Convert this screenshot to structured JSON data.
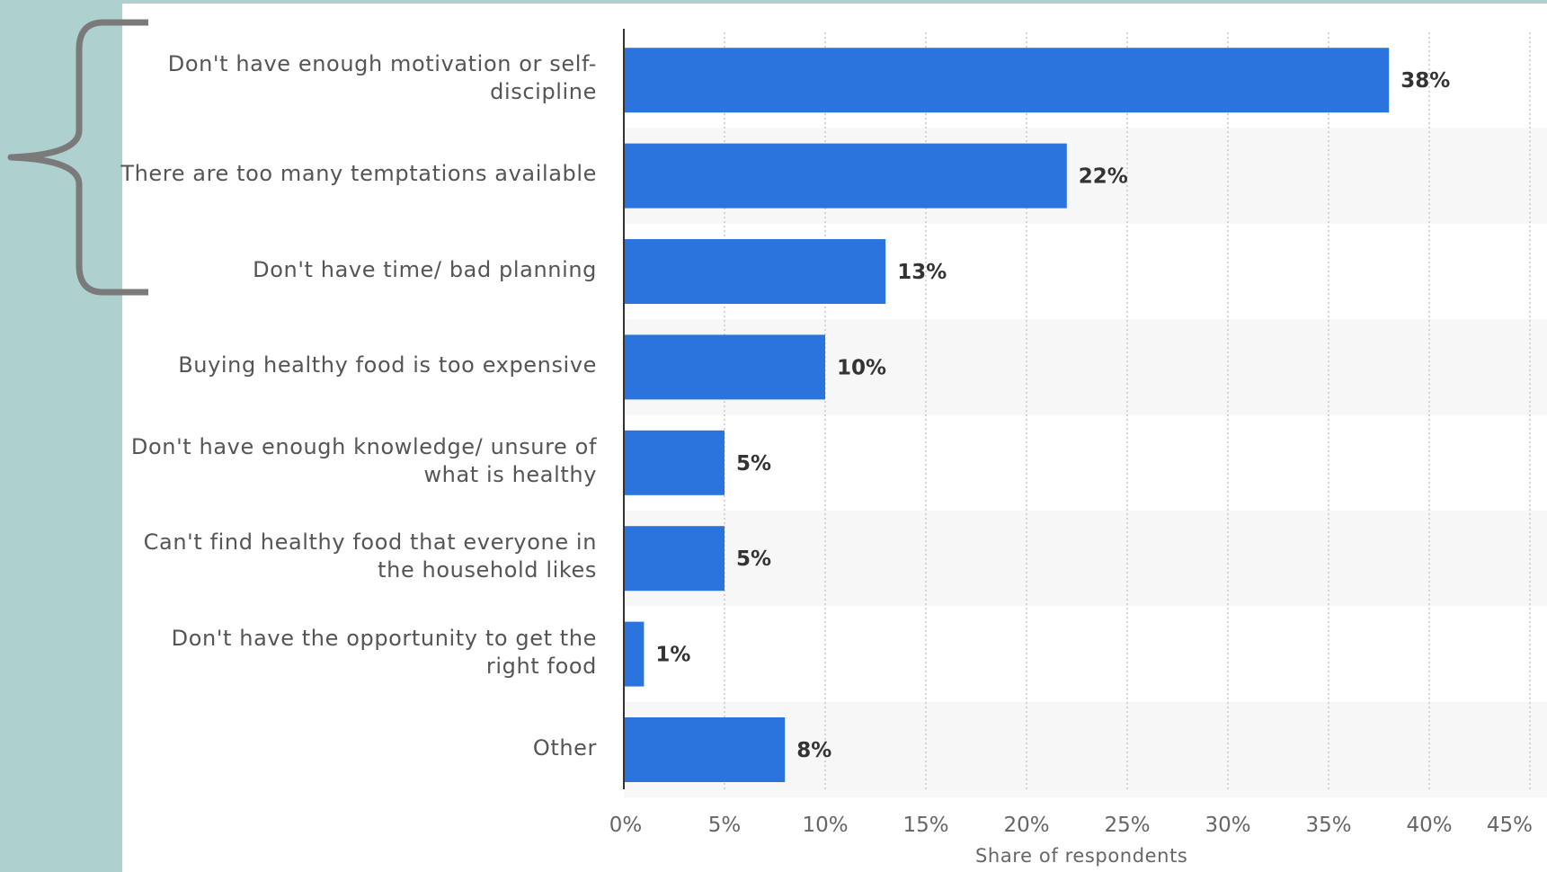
{
  "chart_data": {
    "type": "bar",
    "orientation": "horizontal",
    "categories": [
      "Don't have enough motivation or self-discipline",
      "There are too many temptations available",
      "Don't have time/ bad planning",
      "Buying healthy food is too expensive",
      "Don't have enough knowledge/ unsure of what is healthy",
      "Can't find healthy food that everyone in the household likes",
      "Don't have the opportunity to get the right food",
      "Other"
    ],
    "values": [
      38,
      22,
      13,
      10,
      5,
      5,
      1,
      8
    ],
    "value_labels": [
      "38%",
      "22%",
      "13%",
      "10%",
      "5%",
      "5%",
      "1%",
      "8%"
    ],
    "xlabel": "Share of respondents",
    "xlim": [
      0,
      45
    ],
    "xticks": [
      "0%",
      "5%",
      "10%",
      "15%",
      "20%",
      "25%",
      "30%",
      "35%",
      "40%",
      "45%"
    ],
    "grid": true,
    "bar_color": "#2b74de",
    "band_color": "#f7f7f7",
    "background_color": "#aed0cf",
    "brace_color": "#7a7a7a",
    "brace_spans_categories": 3
  }
}
